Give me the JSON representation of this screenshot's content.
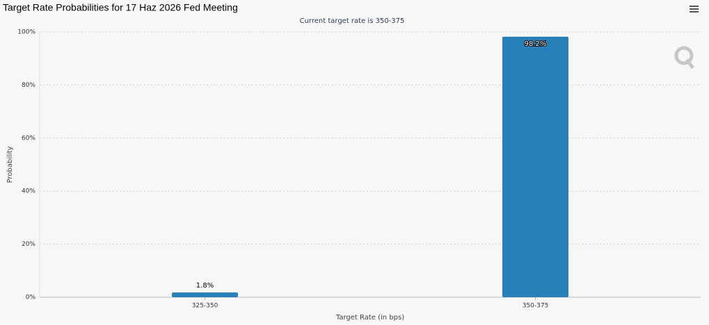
{
  "chart_data": {
    "type": "bar",
    "title": "Target Rate Probabilities for 17 Haz 2026 Fed Meeting",
    "subtitle": "Current target rate is 350-375",
    "x_label": "Target Rate (in bps)",
    "y_label": "Probability",
    "categories": [
      "325-350",
      "350-375"
    ],
    "values": [
      1.8,
      98.2
    ],
    "value_labels": [
      "1.8%",
      "98.2%"
    ],
    "color": "#2980b9",
    "ylim": [
      0,
      100
    ],
    "yticks": [
      {
        "value": 0,
        "label": "0%"
      },
      {
        "value": 20,
        "label": "20%"
      },
      {
        "value": 40,
        "label": "40%"
      },
      {
        "value": 60,
        "label": "60%"
      },
      {
        "value": 80,
        "label": "80%"
      },
      {
        "value": 100,
        "label": "100%"
      }
    ],
    "grid": true
  }
}
